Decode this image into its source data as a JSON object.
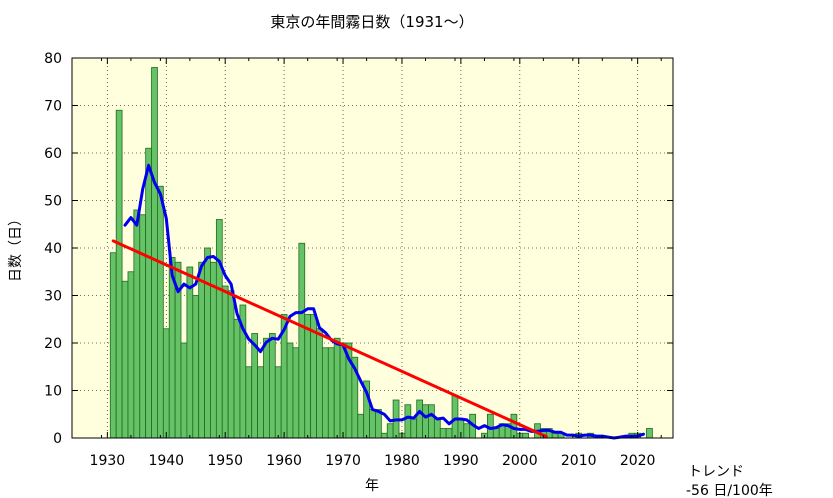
{
  "chart_data": {
    "type": "bar",
    "title": "東京の年間霧日数（1931～）",
    "xlabel": "年",
    "ylabel": "日数（日）",
    "x_ticks": [
      1930,
      1940,
      1950,
      1960,
      1970,
      1980,
      1990,
      2000,
      2010,
      2020
    ],
    "y_ticks": [
      0,
      10,
      20,
      30,
      40,
      50,
      60,
      70,
      80
    ],
    "xlim": [
      1924,
      2026
    ],
    "ylim": [
      0,
      80
    ],
    "grid": true,
    "trend_label": "トレンド",
    "trend_value": "-56 日/100年",
    "series": [
      {
        "type": "bar",
        "color": "#66c266",
        "x": [
          1931,
          1932,
          1933,
          1934,
          1935,
          1936,
          1937,
          1938,
          1939,
          1940,
          1941,
          1942,
          1943,
          1944,
          1945,
          1946,
          1947,
          1948,
          1949,
          1950,
          1951,
          1952,
          1953,
          1954,
          1955,
          1956,
          1957,
          1958,
          1959,
          1960,
          1961,
          1962,
          1963,
          1964,
          1965,
          1966,
          1967,
          1968,
          1969,
          1970,
          1971,
          1972,
          1973,
          1974,
          1975,
          1976,
          1977,
          1978,
          1979,
          1980,
          1981,
          1982,
          1983,
          1984,
          1985,
          1986,
          1987,
          1988,
          1989,
          1990,
          1991,
          1992,
          1993,
          1994,
          1995,
          1996,
          1997,
          1998,
          1999,
          2000,
          2001,
          2002,
          2003,
          2004,
          2005,
          2006,
          2007,
          2008,
          2009,
          2010,
          2011,
          2012,
          2013,
          2014,
          2015,
          2016,
          2017,
          2018,
          2019,
          2020,
          2021,
          2022
        ],
        "values": [
          39,
          69,
          33,
          35,
          48,
          47,
          61,
          78,
          53,
          23,
          38,
          37,
          20,
          36,
          30,
          37,
          40,
          37,
          46,
          32,
          31,
          25,
          28,
          15,
          22,
          15,
          21,
          22,
          15,
          26,
          20,
          19,
          41,
          26,
          26,
          23,
          19,
          19,
          21,
          20,
          20,
          17,
          5,
          12,
          6,
          6,
          1,
          3,
          8,
          1,
          7,
          4,
          8,
          7,
          7,
          4,
          2,
          2,
          9,
          4,
          3,
          5,
          0,
          1,
          5,
          2,
          3,
          3,
          5,
          1,
          1,
          0,
          3,
          2,
          2,
          1,
          1,
          0,
          0,
          1,
          0,
          1,
          0,
          0,
          0,
          0,
          0,
          0,
          1,
          1,
          0,
          2
        ]
      },
      {
        "type": "line",
        "name": "moving_average",
        "color": "#0000ee",
        "x": [
          1933,
          1934,
          1935,
          1936,
          1937,
          1938,
          1939,
          1940,
          1941,
          1942,
          1943,
          1944,
          1945,
          1946,
          1947,
          1948,
          1949,
          1950,
          1951,
          1952,
          1953,
          1954,
          1955,
          1956,
          1957,
          1958,
          1959,
          1960,
          1961,
          1962,
          1963,
          1964,
          1965,
          1966,
          1967,
          1968,
          1969,
          1970,
          1971,
          1972,
          1973,
          1974,
          1975,
          1976,
          1977,
          1978,
          1979,
          1980,
          1981,
          1982,
          1983,
          1984,
          1985,
          1986,
          1987,
          1988,
          1989,
          1990,
          1991,
          1992,
          1993,
          1994,
          1995,
          1996,
          1997,
          1998,
          1999,
          2000,
          2001,
          2002,
          2003,
          2004,
          2005,
          2006,
          2007,
          2008,
          2009,
          2010,
          2011,
          2012,
          2013,
          2014,
          2015,
          2016,
          2017,
          2018,
          2019,
          2020,
          2021
        ],
        "values": [
          44.8,
          46.4,
          44.8,
          52.4,
          57.4,
          53.8,
          51.4,
          46.2,
          34.2,
          30.8,
          32.4,
          31.6,
          32.4,
          36.2,
          38,
          38.2,
          37.2,
          34.2,
          32.4,
          26.2,
          23,
          20.8,
          19.6,
          18.2,
          20.2,
          21,
          20.8,
          22.8,
          25.6,
          26.4,
          26.4,
          27.2,
          27.2,
          23.2,
          22.2,
          20.6,
          19.8,
          19.6,
          16.6,
          14.6,
          12,
          9.6,
          6,
          5.6,
          5,
          3.6,
          3.8,
          3.8,
          4.4,
          4.2,
          5.6,
          4.4,
          5,
          4,
          4.2,
          3,
          4,
          4,
          3.8,
          2.8,
          2,
          2.6,
          2,
          2.2,
          2.8,
          2.6,
          2,
          1.8,
          1.8,
          1.4,
          1.4,
          1.6,
          1.6,
          1.2,
          1.2,
          0.6,
          0.6,
          0.4,
          0.6,
          0.6,
          0.4,
          0.4,
          0.2,
          0,
          0.2,
          0.4,
          0.4,
          0.4,
          0.8
        ]
      },
      {
        "type": "line",
        "name": "trend",
        "color": "#ff0000",
        "x": [
          1931,
          2004.5
        ],
        "values": [
          41.5,
          0.3
        ]
      }
    ]
  }
}
